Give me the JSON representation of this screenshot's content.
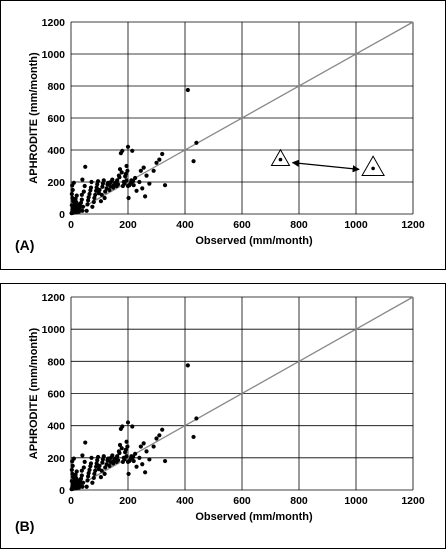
{
  "chart_data": [
    {
      "type": "scatter",
      "panel_label": "(A)",
      "xlabel": "Observed (mm/month)",
      "ylabel": "APHRODITE (mm/month)",
      "xlim": [
        0,
        1200
      ],
      "ylim": [
        0,
        1200
      ],
      "xticks": [
        "0",
        "200",
        "400",
        "600",
        "800",
        "1000",
        "1200"
      ],
      "yticks": [
        "0",
        "200",
        "400",
        "600",
        "800",
        "1000",
        "1200"
      ],
      "grid": true,
      "reference_line": {
        "from": [
          0,
          0
        ],
        "to": [
          1200,
          1200
        ],
        "color": "#888888"
      },
      "annotation": {
        "type": "triangle-markers-with-arrow",
        "points": [
          [
            735,
            340
          ],
          [
            1060,
            285
          ]
        ]
      },
      "series": [
        {
          "points": [
            [
              2,
              5
            ],
            [
              4,
              12
            ],
            [
              5,
              25
            ],
            [
              6,
              40
            ],
            [
              3,
              55
            ],
            [
              8,
              8
            ],
            [
              10,
              18
            ],
            [
              12,
              30
            ],
            [
              14,
              62
            ],
            [
              8,
              80
            ],
            [
              5,
              100
            ],
            [
              3,
              125
            ],
            [
              6,
              150
            ],
            [
              4,
              178
            ],
            [
              10,
              195
            ],
            [
              15,
              45
            ],
            [
              18,
              10
            ],
            [
              20,
              25
            ],
            [
              22,
              40
            ],
            [
              25,
              60
            ],
            [
              18,
              75
            ],
            [
              16,
              95
            ],
            [
              20,
              115
            ],
            [
              28,
              15
            ],
            [
              30,
              30
            ],
            [
              32,
              50
            ],
            [
              35,
              70
            ],
            [
              38,
              90
            ],
            [
              40,
              20
            ],
            [
              42,
              45
            ],
            [
              38,
              120
            ],
            [
              45,
              140
            ],
            [
              48,
              175
            ],
            [
              40,
              215
            ],
            [
              50,
              295
            ],
            [
              55,
              20
            ],
            [
              58,
              60
            ],
            [
              60,
              85
            ],
            [
              62,
              105
            ],
            [
              65,
              125
            ],
            [
              68,
              148
            ],
            [
              70,
              165
            ],
            [
              72,
              200
            ],
            [
              75,
              45
            ],
            [
              80,
              75
            ],
            [
              82,
              100
            ],
            [
              85,
              120
            ],
            [
              88,
              145
            ],
            [
              90,
              165
            ],
            [
              92,
              185
            ],
            [
              95,
              205
            ],
            [
              98,
              130
            ],
            [
              100,
              150
            ],
            [
              105,
              80
            ],
            [
              108,
              120
            ],
            [
              110,
              170
            ],
            [
              112,
              190
            ],
            [
              115,
              210
            ],
            [
              118,
              100
            ],
            [
              120,
              140
            ],
            [
              125,
              160
            ],
            [
              128,
              185
            ],
            [
              130,
              195
            ],
            [
              135,
              150
            ],
            [
              138,
              175
            ],
            [
              140,
              200
            ],
            [
              145,
              215
            ],
            [
              148,
              165
            ],
            [
              150,
              180
            ],
            [
              155,
              195
            ],
            [
              160,
              175
            ],
            [
              162,
              210
            ],
            [
              165,
              185
            ],
            [
              168,
              240
            ],
            [
              170,
              230
            ],
            [
              172,
              280
            ],
            [
              175,
              380
            ],
            [
              178,
              260
            ],
            [
              180,
              395
            ],
            [
              182,
              175
            ],
            [
              185,
              200
            ],
            [
              188,
              190
            ],
            [
              190,
              235
            ],
            [
              192,
              250
            ],
            [
              195,
              210
            ],
            [
              195,
              300
            ],
            [
              198,
              270
            ],
            [
              200,
              175
            ],
            [
              200,
              420
            ],
            [
              202,
              100
            ],
            [
              205,
              180
            ],
            [
              210,
              195
            ],
            [
              212,
              210
            ],
            [
              215,
              395
            ],
            [
              218,
              205
            ],
            [
              220,
              180
            ],
            [
              225,
              225
            ],
            [
              230,
              145
            ],
            [
              240,
              200
            ],
            [
              245,
              270
            ],
            [
              250,
              160
            ],
            [
              255,
              290
            ],
            [
              260,
              110
            ],
            [
              265,
              240
            ],
            [
              275,
              190
            ],
            [
              290,
              270
            ],
            [
              300,
              320
            ],
            [
              310,
              340
            ],
            [
              320,
              375
            ],
            [
              330,
              180
            ],
            [
              410,
              775
            ],
            [
              430,
              330
            ],
            [
              440,
              445
            ]
          ]
        }
      ]
    },
    {
      "type": "scatter",
      "panel_label": "(B)",
      "xlabel": "Observed (mm/month)",
      "ylabel": "APHRODITE (mm/month)",
      "xlim": [
        0,
        1200
      ],
      "ylim": [
        0,
        1200
      ],
      "xticks": [
        "0",
        "200",
        "400",
        "600",
        "800",
        "1000",
        "1200"
      ],
      "yticks": [
        "0",
        "200",
        "400",
        "600",
        "800",
        "1000",
        "1200"
      ],
      "grid": true,
      "reference_line": {
        "from": [
          0,
          0
        ],
        "to": [
          1200,
          1200
        ],
        "color": "#888888"
      },
      "series": [
        {
          "points": [
            [
              2,
              5
            ],
            [
              4,
              12
            ],
            [
              5,
              25
            ],
            [
              6,
              40
            ],
            [
              3,
              55
            ],
            [
              8,
              8
            ],
            [
              10,
              18
            ],
            [
              12,
              30
            ],
            [
              14,
              62
            ],
            [
              8,
              80
            ],
            [
              5,
              100
            ],
            [
              3,
              125
            ],
            [
              6,
              150
            ],
            [
              4,
              178
            ],
            [
              10,
              195
            ],
            [
              15,
              45
            ],
            [
              18,
              10
            ],
            [
              20,
              25
            ],
            [
              22,
              40
            ],
            [
              25,
              60
            ],
            [
              18,
              75
            ],
            [
              16,
              95
            ],
            [
              20,
              115
            ],
            [
              28,
              15
            ],
            [
              30,
              30
            ],
            [
              32,
              50
            ],
            [
              35,
              70
            ],
            [
              38,
              90
            ],
            [
              40,
              20
            ],
            [
              42,
              45
            ],
            [
              38,
              120
            ],
            [
              45,
              140
            ],
            [
              48,
              175
            ],
            [
              40,
              215
            ],
            [
              50,
              295
            ],
            [
              55,
              20
            ],
            [
              58,
              60
            ],
            [
              60,
              85
            ],
            [
              62,
              105
            ],
            [
              65,
              125
            ],
            [
              68,
              148
            ],
            [
              70,
              165
            ],
            [
              72,
              200
            ],
            [
              75,
              45
            ],
            [
              80,
              75
            ],
            [
              82,
              100
            ],
            [
              85,
              120
            ],
            [
              88,
              145
            ],
            [
              90,
              165
            ],
            [
              92,
              185
            ],
            [
              95,
              205
            ],
            [
              98,
              130
            ],
            [
              100,
              150
            ],
            [
              105,
              80
            ],
            [
              108,
              120
            ],
            [
              110,
              170
            ],
            [
              112,
              190
            ],
            [
              115,
              210
            ],
            [
              118,
              100
            ],
            [
              120,
              140
            ],
            [
              125,
              160
            ],
            [
              128,
              185
            ],
            [
              130,
              195
            ],
            [
              135,
              150
            ],
            [
              138,
              175
            ],
            [
              140,
              200
            ],
            [
              145,
              215
            ],
            [
              148,
              165
            ],
            [
              150,
              180
            ],
            [
              155,
              195
            ],
            [
              160,
              175
            ],
            [
              162,
              210
            ],
            [
              165,
              185
            ],
            [
              168,
              240
            ],
            [
              170,
              230
            ],
            [
              172,
              280
            ],
            [
              175,
              380
            ],
            [
              178,
              260
            ],
            [
              180,
              395
            ],
            [
              182,
              175
            ],
            [
              185,
              200
            ],
            [
              188,
              190
            ],
            [
              190,
              235
            ],
            [
              192,
              250
            ],
            [
              195,
              210
            ],
            [
              195,
              300
            ],
            [
              198,
              270
            ],
            [
              200,
              175
            ],
            [
              200,
              420
            ],
            [
              202,
              100
            ],
            [
              205,
              180
            ],
            [
              210,
              195
            ],
            [
              212,
              210
            ],
            [
              215,
              395
            ],
            [
              218,
              205
            ],
            [
              220,
              180
            ],
            [
              225,
              225
            ],
            [
              230,
              145
            ],
            [
              240,
              200
            ],
            [
              245,
              270
            ],
            [
              250,
              160
            ],
            [
              255,
              290
            ],
            [
              260,
              110
            ],
            [
              265,
              240
            ],
            [
              275,
              190
            ],
            [
              290,
              270
            ],
            [
              300,
              320
            ],
            [
              310,
              340
            ],
            [
              320,
              375
            ],
            [
              330,
              180
            ],
            [
              410,
              775
            ],
            [
              430,
              330
            ],
            [
              440,
              445
            ]
          ]
        }
      ]
    }
  ]
}
